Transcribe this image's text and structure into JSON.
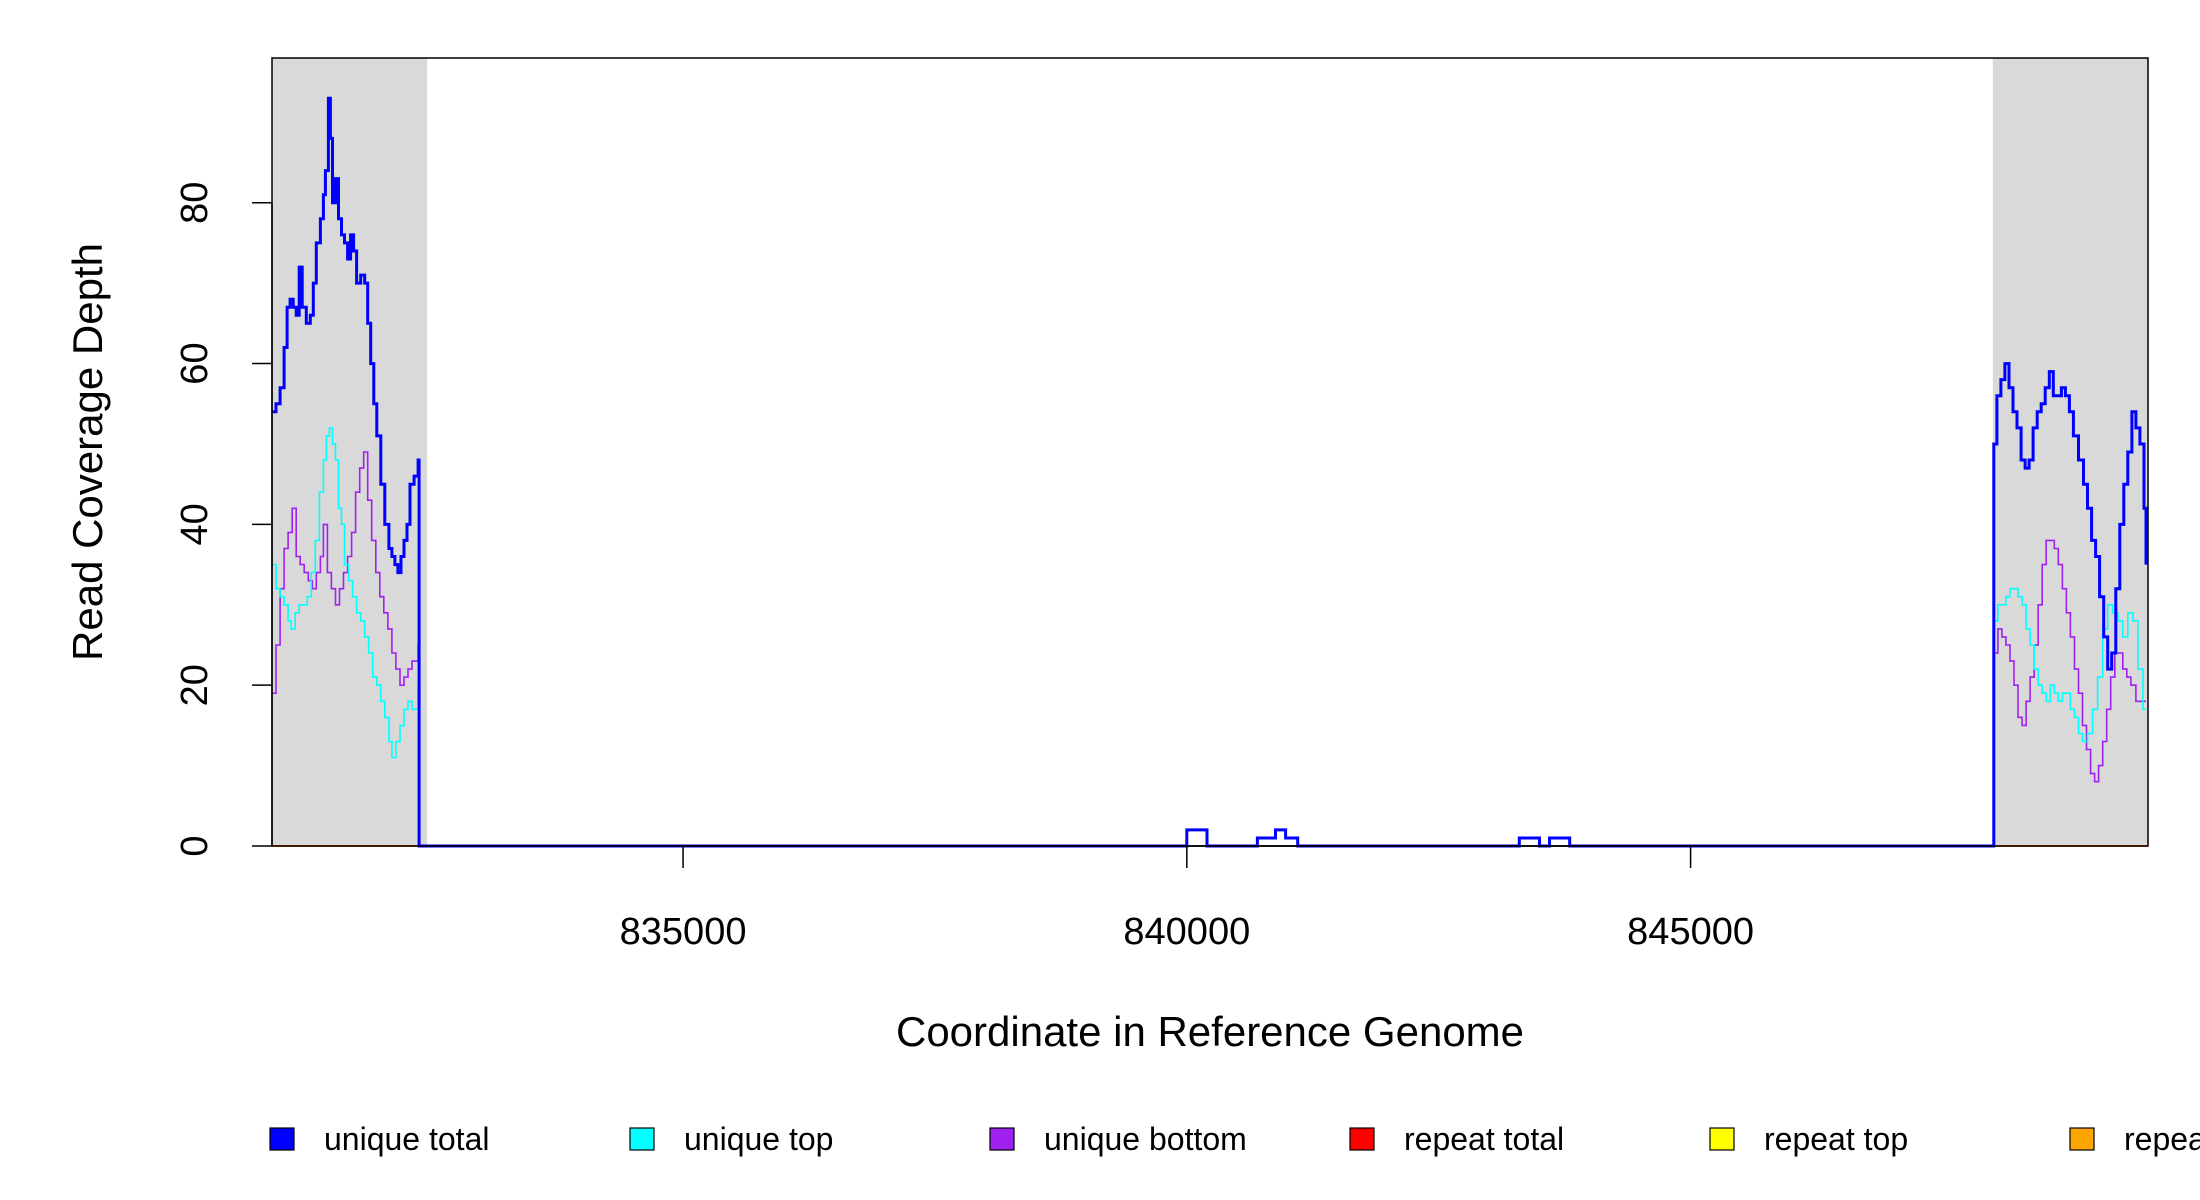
{
  "chart_data": {
    "type": "line",
    "xlabel": "Coordinate in Reference Genome",
    "ylabel": "Read Coverage Depth",
    "xlim": [
      830920,
      849540
    ],
    "ylim": [
      0,
      98
    ],
    "x_ticks": [
      835000,
      840000,
      845000
    ],
    "y_ticks": [
      0,
      20,
      40,
      60,
      80
    ],
    "shaded_regions": [
      [
        830920,
        832460
      ],
      [
        848000,
        849540
      ]
    ],
    "legend_position": "bottom",
    "legend": [
      {
        "name": "unique total",
        "color": "#0000ff"
      },
      {
        "name": "unique top",
        "color": "#00ffff"
      },
      {
        "name": "unique bottom",
        "color": "#a020f0"
      },
      {
        "name": "repeat total",
        "color": "#ff0000"
      },
      {
        "name": "repeat top",
        "color": "#ffff00"
      },
      {
        "name": "repeat bottom",
        "color": "#ffa500"
      }
    ],
    "series": [
      {
        "name": "unique total",
        "color": "#0000ff",
        "points": [
          [
            830920,
            54
          ],
          [
            830960,
            55
          ],
          [
            831000,
            57
          ],
          [
            831040,
            62
          ],
          [
            831070,
            67
          ],
          [
            831100,
            68
          ],
          [
            831130,
            67
          ],
          [
            831160,
            66
          ],
          [
            831190,
            72
          ],
          [
            831220,
            67
          ],
          [
            831260,
            65
          ],
          [
            831300,
            66
          ],
          [
            831330,
            70
          ],
          [
            831360,
            75
          ],
          [
            831400,
            78
          ],
          [
            831430,
            81
          ],
          [
            831450,
            84
          ],
          [
            831480,
            93
          ],
          [
            831500,
            88
          ],
          [
            831520,
            80
          ],
          [
            831550,
            83
          ],
          [
            831580,
            78
          ],
          [
            831610,
            76
          ],
          [
            831640,
            75
          ],
          [
            831670,
            73
          ],
          [
            831700,
            76
          ],
          [
            831730,
            74
          ],
          [
            831760,
            70
          ],
          [
            831800,
            71
          ],
          [
            831840,
            70
          ],
          [
            831870,
            65
          ],
          [
            831900,
            60
          ],
          [
            831930,
            55
          ],
          [
            831960,
            51
          ],
          [
            832000,
            45
          ],
          [
            832040,
            40
          ],
          [
            832080,
            37
          ],
          [
            832110,
            36
          ],
          [
            832140,
            35
          ],
          [
            832170,
            34
          ],
          [
            832200,
            36
          ],
          [
            832230,
            38
          ],
          [
            832260,
            40
          ],
          [
            832290,
            45
          ],
          [
            832330,
            46
          ],
          [
            832370,
            48
          ],
          [
            832380,
            0
          ],
          [
            839970,
            0
          ],
          [
            840000,
            2
          ],
          [
            840200,
            0
          ],
          [
            840700,
            1
          ],
          [
            840880,
            2
          ],
          [
            840980,
            1
          ],
          [
            841100,
            0
          ],
          [
            843300,
            1
          ],
          [
            843500,
            0
          ],
          [
            843600,
            1
          ],
          [
            843800,
            0
          ],
          [
            847980,
            0
          ],
          [
            848010,
            50
          ],
          [
            848040,
            56
          ],
          [
            848080,
            58
          ],
          [
            848120,
            60
          ],
          [
            848160,
            57
          ],
          [
            848200,
            54
          ],
          [
            848240,
            52
          ],
          [
            848280,
            48
          ],
          [
            848320,
            47
          ],
          [
            848360,
            48
          ],
          [
            848400,
            52
          ],
          [
            848440,
            54
          ],
          [
            848480,
            55
          ],
          [
            848520,
            57
          ],
          [
            848560,
            59
          ],
          [
            848600,
            56
          ],
          [
            848640,
            56
          ],
          [
            848680,
            57
          ],
          [
            848720,
            56
          ],
          [
            848760,
            54
          ],
          [
            848800,
            51
          ],
          [
            848850,
            48
          ],
          [
            848900,
            45
          ],
          [
            848940,
            42
          ],
          [
            848980,
            38
          ],
          [
            849020,
            36
          ],
          [
            849060,
            31
          ],
          [
            849100,
            26
          ],
          [
            849140,
            22
          ],
          [
            849180,
            24
          ],
          [
            849220,
            32
          ],
          [
            849260,
            40
          ],
          [
            849300,
            45
          ],
          [
            849340,
            49
          ],
          [
            849380,
            54
          ],
          [
            849420,
            52
          ],
          [
            849460,
            50
          ],
          [
            849500,
            42
          ],
          [
            849520,
            35
          ]
        ]
      },
      {
        "name": "unique top",
        "color": "#00ffff",
        "points": [
          [
            830920,
            35
          ],
          [
            830960,
            32
          ],
          [
            831000,
            31
          ],
          [
            831040,
            30
          ],
          [
            831080,
            28
          ],
          [
            831110,
            27
          ],
          [
            831150,
            29
          ],
          [
            831190,
            30
          ],
          [
            831230,
            30
          ],
          [
            831270,
            31
          ],
          [
            831310,
            34
          ],
          [
            831350,
            38
          ],
          [
            831390,
            44
          ],
          [
            831430,
            48
          ],
          [
            831460,
            51
          ],
          [
            831490,
            52
          ],
          [
            831520,
            50
          ],
          [
            831550,
            48
          ],
          [
            831580,
            42
          ],
          [
            831610,
            40
          ],
          [
            831640,
            35
          ],
          [
            831680,
            33
          ],
          [
            831720,
            31
          ],
          [
            831760,
            29
          ],
          [
            831800,
            28
          ],
          [
            831840,
            26
          ],
          [
            831880,
            24
          ],
          [
            831920,
            21
          ],
          [
            831960,
            20
          ],
          [
            832000,
            18
          ],
          [
            832040,
            16
          ],
          [
            832080,
            13
          ],
          [
            832110,
            11
          ],
          [
            832150,
            13
          ],
          [
            832190,
            15
          ],
          [
            832230,
            17
          ],
          [
            832270,
            18
          ],
          [
            832310,
            17
          ],
          [
            832370,
            20
          ],
          [
            832380,
            0
          ],
          [
            847980,
            0
          ],
          [
            848010,
            28
          ],
          [
            848050,
            30
          ],
          [
            848090,
            30
          ],
          [
            848130,
            31
          ],
          [
            848170,
            32
          ],
          [
            848210,
            32
          ],
          [
            848250,
            31
          ],
          [
            848290,
            30
          ],
          [
            848330,
            27
          ],
          [
            848370,
            25
          ],
          [
            848410,
            22
          ],
          [
            848450,
            20
          ],
          [
            848490,
            19
          ],
          [
            848530,
            18
          ],
          [
            848570,
            20
          ],
          [
            848610,
            19
          ],
          [
            848650,
            18
          ],
          [
            848690,
            19
          ],
          [
            848730,
            19
          ],
          [
            848770,
            17
          ],
          [
            848810,
            16
          ],
          [
            848850,
            14
          ],
          [
            848890,
            13
          ],
          [
            848940,
            14
          ],
          [
            848990,
            17
          ],
          [
            849040,
            21
          ],
          [
            849090,
            27
          ],
          [
            849140,
            30
          ],
          [
            849190,
            29
          ],
          [
            849240,
            28
          ],
          [
            849290,
            26
          ],
          [
            849340,
            29
          ],
          [
            849390,
            28
          ],
          [
            849440,
            22
          ],
          [
            849490,
            17
          ],
          [
            849520,
            17
          ]
        ]
      },
      {
        "name": "unique bottom",
        "color": "#a020f0",
        "points": [
          [
            830920,
            19
          ],
          [
            830960,
            25
          ],
          [
            831000,
            32
          ],
          [
            831040,
            37
          ],
          [
            831080,
            39
          ],
          [
            831120,
            42
          ],
          [
            831160,
            36
          ],
          [
            831200,
            35
          ],
          [
            831240,
            34
          ],
          [
            831280,
            33
          ],
          [
            831320,
            32
          ],
          [
            831360,
            34
          ],
          [
            831400,
            36
          ],
          [
            831430,
            40
          ],
          [
            831470,
            34
          ],
          [
            831510,
            32
          ],
          [
            831550,
            30
          ],
          [
            831590,
            32
          ],
          [
            831630,
            34
          ],
          [
            831670,
            36
          ],
          [
            831710,
            39
          ],
          [
            831750,
            44
          ],
          [
            831790,
            47
          ],
          [
            831830,
            49
          ],
          [
            831870,
            43
          ],
          [
            831910,
            38
          ],
          [
            831950,
            34
          ],
          [
            831990,
            31
          ],
          [
            832030,
            29
          ],
          [
            832070,
            27
          ],
          [
            832110,
            24
          ],
          [
            832150,
            22
          ],
          [
            832190,
            20
          ],
          [
            832230,
            21
          ],
          [
            832270,
            22
          ],
          [
            832310,
            23
          ],
          [
            832370,
            25
          ],
          [
            832380,
            0
          ],
          [
            847980,
            0
          ],
          [
            848010,
            24
          ],
          [
            848050,
            27
          ],
          [
            848090,
            26
          ],
          [
            848130,
            25
          ],
          [
            848170,
            23
          ],
          [
            848210,
            20
          ],
          [
            848250,
            16
          ],
          [
            848290,
            15
          ],
          [
            848330,
            18
          ],
          [
            848370,
            21
          ],
          [
            848410,
            25
          ],
          [
            848450,
            30
          ],
          [
            848490,
            35
          ],
          [
            848530,
            38
          ],
          [
            848570,
            38
          ],
          [
            848610,
            37
          ],
          [
            848650,
            35
          ],
          [
            848690,
            32
          ],
          [
            848730,
            29
          ],
          [
            848770,
            26
          ],
          [
            848810,
            22
          ],
          [
            848850,
            19
          ],
          [
            848890,
            15
          ],
          [
            848930,
            12
          ],
          [
            848970,
            9
          ],
          [
            849010,
            8
          ],
          [
            849050,
            10
          ],
          [
            849090,
            13
          ],
          [
            849130,
            17
          ],
          [
            849170,
            21
          ],
          [
            849210,
            24
          ],
          [
            849250,
            24
          ],
          [
            849290,
            22
          ],
          [
            849330,
            21
          ],
          [
            849370,
            20
          ],
          [
            849420,
            18
          ],
          [
            849470,
            18
          ],
          [
            849520,
            18
          ]
        ]
      },
      {
        "name": "repeat total",
        "color": "#ff0000",
        "points": [
          [
            830920,
            0
          ],
          [
            849540,
            0
          ]
        ]
      },
      {
        "name": "repeat top",
        "color": "#ffff00",
        "points": [
          [
            830920,
            0
          ],
          [
            849540,
            0
          ]
        ]
      },
      {
        "name": "repeat bottom",
        "color": "#ffa500",
        "points": [
          [
            830920,
            0
          ],
          [
            849540,
            0
          ]
        ]
      }
    ]
  }
}
